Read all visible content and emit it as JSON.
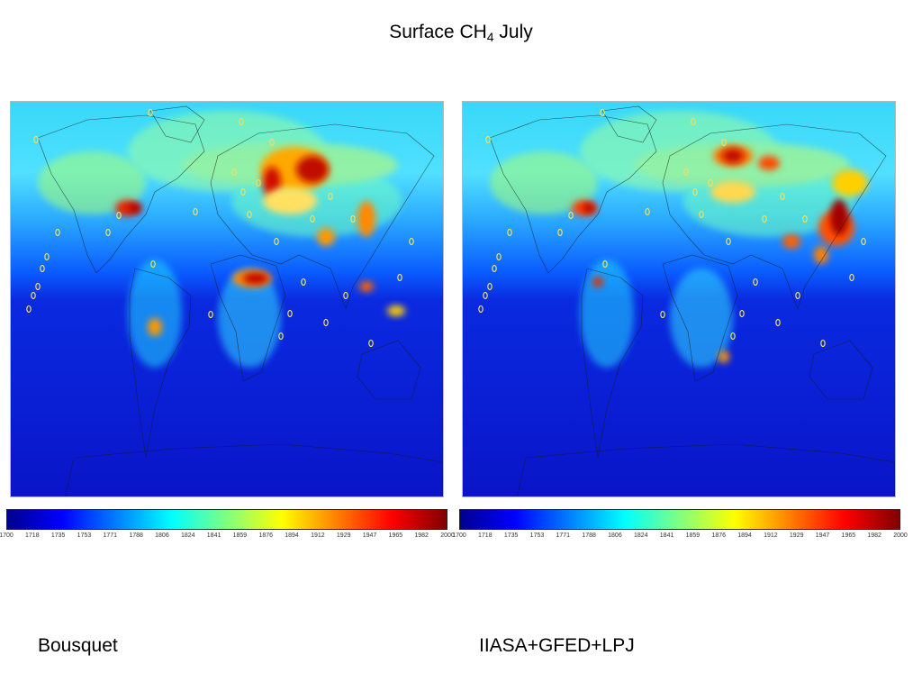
{
  "title": {
    "main": "Surface CH",
    "sub": "4",
    "rest": " July"
  },
  "panels": [
    {
      "id": "left",
      "label": "Bousquet"
    },
    {
      "id": "right",
      "label": "IIASA+GFED+LPJ"
    }
  ],
  "colorbar": {
    "ticks": [
      "1700",
      "1718",
      "1735",
      "1753",
      "1771",
      "1788",
      "1806",
      "1824",
      "1841",
      "1859",
      "1876",
      "1894",
      "1912",
      "1929",
      "1947",
      "1965",
      "1982",
      "2000"
    ],
    "colors": [
      "#00008f",
      "#0000ff",
      "#0080ff",
      "#00ffff",
      "#80ff80",
      "#ffff00",
      "#ff8000",
      "#ff0000",
      "#800000"
    ]
  },
  "colors": {
    "ocean_deep": "#0a14c8",
    "ocean_mid": "#0a5cff",
    "high_lat": "#38d8f8",
    "marker": "#f0e060"
  }
}
